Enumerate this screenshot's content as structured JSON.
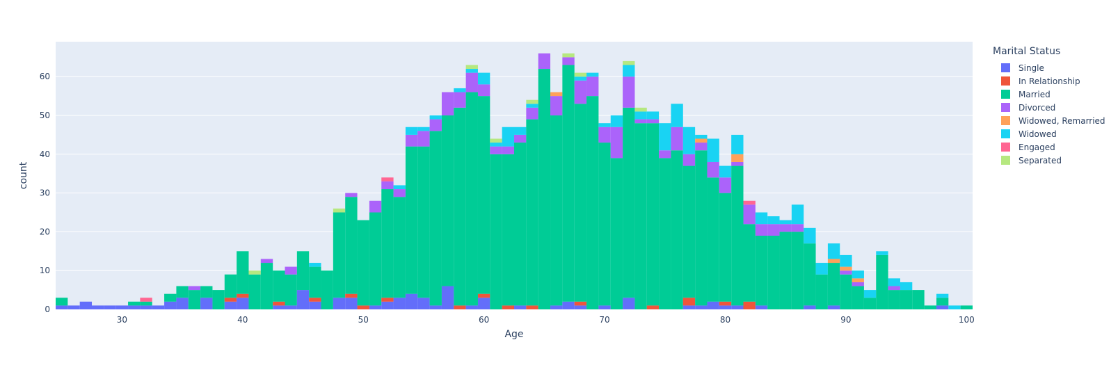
{
  "chart_data": {
    "type": "bar",
    "stacked": true,
    "bin_width": 1,
    "xlabel": "Age",
    "ylabel": "count",
    "xlim": [
      24.5,
      100.5
    ],
    "ylim": [
      0,
      69
    ],
    "xticks": [
      30,
      40,
      50,
      60,
      70,
      80,
      90,
      100
    ],
    "yticks": [
      0,
      10,
      20,
      30,
      40,
      50,
      60
    ],
    "grid": true,
    "legend_title": "Marital Status",
    "legend_position": "right",
    "x": [
      25,
      26,
      27,
      28,
      29,
      30,
      31,
      32,
      33,
      34,
      35,
      36,
      37,
      38,
      39,
      40,
      41,
      42,
      43,
      44,
      45,
      46,
      47,
      48,
      49,
      50,
      51,
      52,
      53,
      54,
      55,
      56,
      57,
      58,
      59,
      60,
      61,
      62,
      63,
      64,
      65,
      66,
      67,
      68,
      69,
      70,
      71,
      72,
      73,
      74,
      75,
      76,
      77,
      78,
      79,
      80,
      81,
      82,
      83,
      84,
      85,
      86,
      87,
      88,
      89,
      90,
      91,
      92,
      93,
      94,
      95,
      96,
      97,
      98,
      99,
      100
    ],
    "series": [
      {
        "name": "Single",
        "color": "#636efa",
        "values": [
          1,
          1,
          2,
          1,
          1,
          1,
          1,
          1,
          1,
          2,
          3,
          0,
          3,
          0,
          2,
          3,
          0,
          0,
          1,
          1,
          5,
          2,
          0,
          3,
          3,
          0,
          1,
          2,
          3,
          4,
          3,
          1,
          6,
          0,
          1,
          3,
          0,
          0,
          1,
          0,
          0,
          1,
          2,
          1,
          0,
          1,
          0,
          3,
          0,
          0,
          0,
          0,
          1,
          1,
          2,
          1,
          1,
          0,
          1,
          0,
          0,
          0,
          1,
          0,
          1,
          0,
          0,
          0,
          0,
          0,
          0,
          0,
          0,
          1,
          0,
          0
        ]
      },
      {
        "name": "In Relationship",
        "color": "#ef553b",
        "values": [
          0,
          0,
          0,
          0,
          0,
          0,
          0,
          0,
          0,
          0,
          0,
          0,
          0,
          0,
          1,
          1,
          0,
          0,
          1,
          0,
          0,
          1,
          0,
          0,
          1,
          1,
          0,
          1,
          0,
          0,
          0,
          0,
          0,
          1,
          0,
          1,
          0,
          1,
          0,
          1,
          0,
          0,
          0,
          1,
          0,
          0,
          0,
          0,
          0,
          1,
          0,
          0,
          2,
          0,
          0,
          1,
          0,
          2,
          0,
          0,
          0,
          0,
          0,
          0,
          0,
          0,
          0,
          0,
          0,
          0,
          0,
          0,
          0,
          0,
          0,
          0
        ]
      },
      {
        "name": "Married",
        "color": "#00cc96",
        "values": [
          2,
          0,
          0,
          0,
          0,
          0,
          1,
          1,
          0,
          2,
          3,
          5,
          3,
          5,
          6,
          11,
          9,
          12,
          8,
          8,
          10,
          8,
          10,
          22,
          25,
          22,
          24,
          28,
          26,
          38,
          39,
          45,
          44,
          51,
          55,
          51,
          40,
          39,
          42,
          48,
          62,
          49,
          61,
          51,
          55,
          42,
          39,
          49,
          48,
          47,
          39,
          41,
          34,
          40,
          32,
          28,
          36,
          20,
          18,
          19,
          20,
          20,
          16,
          9,
          11,
          9,
          6,
          3,
          14,
          5,
          5,
          5,
          1,
          2,
          0,
          1
        ]
      },
      {
        "name": "Divorced",
        "color": "#ab63fa",
        "values": [
          0,
          0,
          0,
          0,
          0,
          0,
          0,
          0,
          0,
          0,
          0,
          1,
          0,
          0,
          0,
          0,
          0,
          1,
          0,
          2,
          0,
          0,
          0,
          0,
          1,
          0,
          3,
          2,
          2,
          3,
          4,
          3,
          6,
          4,
          5,
          3,
          2,
          2,
          2,
          3,
          4,
          5,
          2,
          6,
          5,
          4,
          8,
          8,
          1,
          1,
          2,
          6,
          3,
          2,
          4,
          4,
          1,
          5,
          3,
          3,
          2,
          2,
          0,
          0,
          0,
          1,
          1,
          0,
          0,
          1,
          0,
          0,
          0,
          0,
          0,
          0
        ]
      },
      {
        "name": "Widowed, Remarried",
        "color": "#ffa15a",
        "values": [
          0,
          0,
          0,
          0,
          0,
          0,
          0,
          0,
          0,
          0,
          0,
          0,
          0,
          0,
          0,
          0,
          0,
          0,
          0,
          0,
          0,
          0,
          0,
          0,
          0,
          0,
          0,
          0,
          0,
          0,
          0,
          0,
          0,
          0,
          0,
          0,
          0,
          0,
          0,
          0,
          0,
          1,
          0,
          0,
          0,
          0,
          0,
          0,
          0,
          0,
          0,
          0,
          0,
          1,
          0,
          0,
          2,
          0,
          0,
          0,
          0,
          0,
          0,
          0,
          1,
          1,
          1,
          0,
          0,
          0,
          0,
          0,
          0,
          0,
          0,
          0
        ]
      },
      {
        "name": "Widowed",
        "color": "#19d3f3",
        "values": [
          0,
          0,
          0,
          0,
          0,
          0,
          0,
          0,
          0,
          0,
          0,
          0,
          0,
          0,
          0,
          0,
          0,
          0,
          0,
          0,
          0,
          1,
          0,
          0,
          0,
          0,
          0,
          0,
          1,
          2,
          1,
          1,
          0,
          1,
          1,
          3,
          1,
          5,
          2,
          1,
          0,
          0,
          0,
          1,
          1,
          1,
          3,
          3,
          2,
          2,
          7,
          6,
          7,
          1,
          6,
          3,
          5,
          0,
          3,
          2,
          1,
          5,
          4,
          3,
          4,
          3,
          2,
          2,
          1,
          2,
          2,
          0,
          0,
          1,
          1,
          0
        ]
      },
      {
        "name": "Engaged",
        "color": "#ff6692",
        "values": [
          0,
          0,
          0,
          0,
          0,
          0,
          0,
          1,
          0,
          0,
          0,
          0,
          0,
          0,
          0,
          0,
          0,
          0,
          0,
          0,
          0,
          0,
          0,
          0,
          0,
          0,
          0,
          1,
          0,
          0,
          0,
          0,
          0,
          0,
          0,
          0,
          0,
          0,
          0,
          0,
          0,
          0,
          0,
          0,
          0,
          0,
          0,
          0,
          0,
          0,
          0,
          0,
          0,
          0,
          0,
          0,
          0,
          1,
          0,
          0,
          0,
          0,
          0,
          0,
          0,
          0,
          0,
          0,
          0,
          0,
          0,
          0,
          0,
          0,
          0,
          0
        ]
      },
      {
        "name": "Separated",
        "color": "#b6e880",
        "values": [
          0,
          0,
          0,
          0,
          0,
          0,
          0,
          0,
          0,
          0,
          0,
          0,
          0,
          0,
          0,
          0,
          1,
          0,
          0,
          0,
          0,
          0,
          0,
          1,
          0,
          0,
          0,
          0,
          0,
          0,
          0,
          0,
          0,
          0,
          1,
          0,
          1,
          0,
          0,
          1,
          0,
          0,
          1,
          1,
          0,
          0,
          0,
          1,
          1,
          0,
          0,
          0,
          0,
          0,
          0,
          0,
          0,
          0,
          0,
          0,
          0,
          0,
          0,
          0,
          0,
          0,
          0,
          0,
          0,
          0,
          0,
          0,
          0,
          0,
          0,
          0
        ]
      }
    ]
  },
  "style": {
    "plot_bg": "#e5ecf6",
    "grid_color": "#ffffff",
    "text_color": "#2a3f5f"
  }
}
